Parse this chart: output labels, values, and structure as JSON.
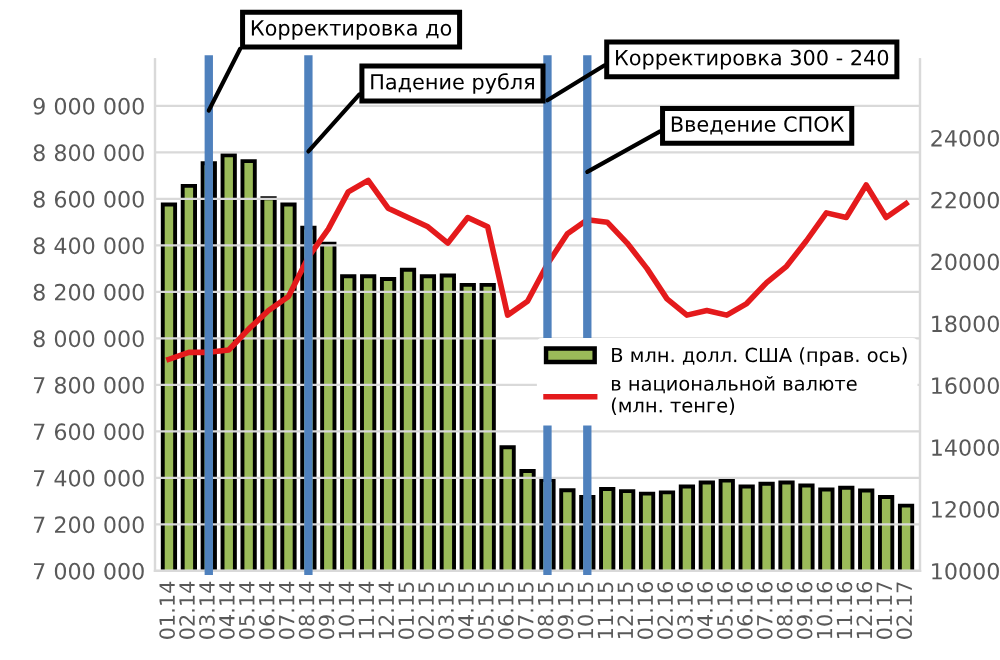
{
  "chart_data": {
    "type": "bar",
    "categories": [
      "01.14",
      "02.14",
      "03.14",
      "04.14",
      "05.14",
      "06.14",
      "07.14",
      "08.14",
      "09.14",
      "10.14",
      "11.14",
      "12.14",
      "01.15",
      "02.15",
      "03.15",
      "04.15",
      "05.15",
      "06.15",
      "07.15",
      "08.15",
      "09.15",
      "10.15",
      "11.15",
      "12.15",
      "01.16",
      "02.16",
      "03.16",
      "04.16",
      "05.16",
      "06.16",
      "07.16",
      "08.16",
      "09.16",
      "10.16",
      "11.16",
      "12.16",
      "01.17",
      "02.17"
    ],
    "series": [
      {
        "name": "В млн. долл. США (прав. ось)",
        "axis": "y2",
        "color": "#9bbb59",
        "values": [
          21850,
          22450,
          23180,
          23440,
          23250,
          22050,
          21850,
          21100,
          20580,
          19530,
          19530,
          19440,
          19740,
          19530,
          19550,
          19250,
          19250,
          14000,
          13230,
          12940,
          12610,
          12390,
          12650,
          12580,
          12500,
          12540,
          12730,
          12860,
          12920,
          12730,
          12820,
          12860,
          12760,
          12630,
          12690,
          12600,
          12390,
          12110
        ]
      },
      {
        "name": "в национальной валюте\n(млн. тенге)",
        "type": "line",
        "color": "#e41a1c",
        "values": [
          7910000,
          7940000,
          7940000,
          7950000,
          8040000,
          8120000,
          8180000,
          8350000,
          8470000,
          8630000,
          8680000,
          8560000,
          8520000,
          8480000,
          8410000,
          8520000,
          8480000,
          8100000,
          8160000,
          8320000,
          8450000,
          8510000,
          8500000,
          8410000,
          8300000,
          8170000,
          8100000,
          8120000,
          8100000,
          8150000,
          8240000,
          8310000,
          8420000,
          8540000,
          8520000,
          8660000,
          8520000,
          8580000
        ]
      }
    ],
    "ylim": [
      7000000,
      9200000
    ],
    "yticks": [
      {
        "value": 7000000,
        "label": "7 000 000"
      },
      {
        "value": 7200000,
        "label": "7 200 000"
      },
      {
        "value": 7400000,
        "label": "7 400 000"
      },
      {
        "value": 7600000,
        "label": "7 600 000"
      },
      {
        "value": 7800000,
        "label": "7 800 000"
      },
      {
        "value": 8000000,
        "label": "8 000 000"
      },
      {
        "value": 8200000,
        "label": "8 200 000"
      },
      {
        "value": 8400000,
        "label": "8 400 000"
      },
      {
        "value": 8600000,
        "label": "8 600 000"
      },
      {
        "value": 8800000,
        "label": "8 800 000"
      },
      {
        "value": 9000000,
        "label": "9 000 000"
      }
    ],
    "y2lim": [
      10000,
      26540
    ],
    "y2ticks": [
      10000,
      12000,
      14000,
      16000,
      18000,
      20000,
      22000,
      24000
    ],
    "grid": "y",
    "legend": "right",
    "ref_lines": [
      {
        "axis": "x",
        "value": "03.14",
        "label": "Корректировка до",
        "color": "#4f81bd"
      },
      {
        "axis": "x",
        "value": "08.14",
        "label": "Падение рубля",
        "color": "#4f81bd"
      },
      {
        "axis": "x",
        "value": "08.15",
        "label": "Корректировка 300 - 240",
        "color": "#4f81bd"
      },
      {
        "axis": "x",
        "value": "10.15",
        "label": "Введение СПОК",
        "color": "#4f81bd"
      }
    ]
  }
}
